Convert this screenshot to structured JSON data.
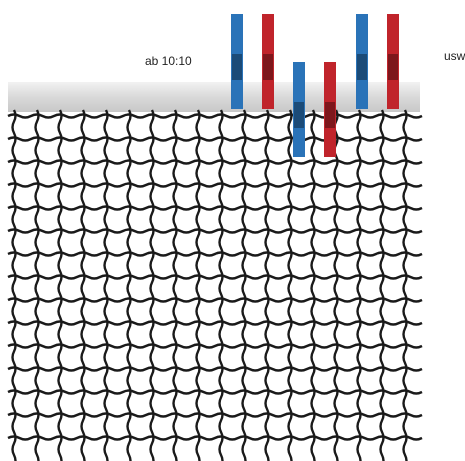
{
  "labels": {
    "time": "ab 10:10",
    "etc": "usw"
  }
}
